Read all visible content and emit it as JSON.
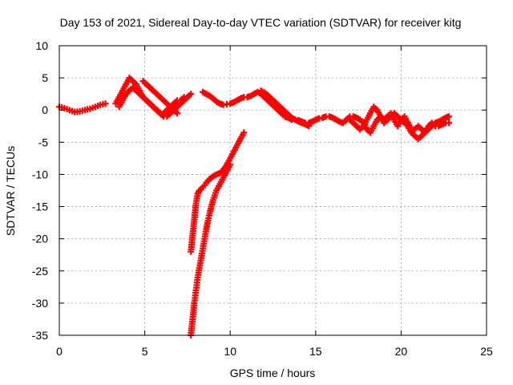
{
  "chart_data": {
    "type": "scatter",
    "title": "Day 153 of 2021, Sidereal Day-to-day VTEC variation (SDTVAR) for receiver kitg",
    "xlabel": "GPS time / hours",
    "ylabel": "SDTVAR / TECUs",
    "xlim": [
      0,
      25
    ],
    "ylim": [
      -35,
      10
    ],
    "xticks": [
      0,
      5,
      10,
      15,
      20,
      25
    ],
    "yticks": [
      10,
      5,
      0,
      -5,
      -10,
      -15,
      -20,
      -25,
      -30,
      -35
    ],
    "grid": true,
    "marker": "plus",
    "color": "#ff0000",
    "series": [
      {
        "name": "main-0",
        "x": [
          0.0,
          0.3,
          0.6,
          0.9,
          1.2,
          1.5,
          1.8,
          2.1,
          2.4,
          2.7
        ],
        "y": [
          0.5,
          0.3,
          0.0,
          -0.3,
          -0.2,
          0.0,
          0.2,
          0.5,
          0.8,
          1.0
        ]
      },
      {
        "name": "main-1",
        "x": [
          3.3,
          3.5,
          3.7,
          3.9,
          4.1,
          4.3,
          4.5,
          4.7,
          4.9,
          5.1,
          5.3,
          5.5,
          5.7,
          5.9,
          6.1,
          6.3,
          6.5,
          6.7,
          6.9,
          7.1,
          7.3,
          7.5,
          7.7
        ],
        "y": [
          1.0,
          2.0,
          3.0,
          4.0,
          5.0,
          4.5,
          4.0,
          3.0,
          2.0,
          1.5,
          1.0,
          0.5,
          0.0,
          -0.5,
          -1.0,
          -1.0,
          -0.5,
          0.0,
          0.5,
          1.0,
          1.5,
          2.0,
          2.5
        ]
      },
      {
        "name": "main-2",
        "x": [
          3.5,
          3.7,
          3.9,
          4.1,
          4.3,
          4.5,
          4.7,
          4.9,
          5.1,
          5.3,
          5.5,
          5.7,
          5.9,
          6.1,
          6.3,
          6.5,
          6.7,
          6.9,
          7.1,
          7.3,
          7.5
        ],
        "y": [
          0.5,
          1.5,
          2.5,
          3.0,
          3.5,
          3.0,
          2.5,
          2.0,
          1.5,
          1.0,
          0.5,
          0.0,
          -0.5,
          -0.5,
          0.0,
          0.5,
          1.0,
          1.5,
          1.5,
          2.0,
          2.0
        ]
      },
      {
        "name": "main-3",
        "x": [
          4.9,
          5.1,
          5.3,
          5.5,
          5.7,
          5.9,
          6.1,
          6.3,
          6.5,
          6.7,
          6.9
        ],
        "y": [
          4.5,
          4.0,
          3.5,
          3.0,
          2.5,
          2.0,
          1.5,
          1.0,
          0.5,
          0.0,
          -0.5
        ]
      },
      {
        "name": "main-4",
        "x": [
          8.4,
          8.6,
          8.8,
          9.0,
          9.2,
          9.4,
          9.6,
          9.8,
          10.0,
          10.2,
          10.4,
          10.6,
          10.8,
          11.0,
          11.2,
          11.4,
          11.6,
          11.8,
          12.0,
          12.2,
          12.4,
          12.6,
          12.8,
          13.0,
          13.2,
          13.4,
          13.6,
          13.8,
          14.0,
          14.2,
          14.4,
          14.6,
          14.8,
          15.0,
          15.2,
          15.4,
          15.6,
          15.8,
          16.0,
          16.2,
          16.4,
          16.6,
          16.8,
          17.0
        ],
        "y": [
          2.8,
          2.5,
          2.2,
          1.8,
          1.3,
          1.0,
          0.8,
          0.9,
          1.0,
          1.2,
          1.5,
          1.8,
          2.0,
          2.0,
          2.2,
          2.5,
          2.8,
          2.5,
          2.0,
          1.5,
          1.0,
          0.5,
          0.0,
          -0.5,
          -1.0,
          -1.2,
          -1.5,
          -1.5,
          -1.6,
          -1.8,
          -2.0,
          -2.0,
          -1.8,
          -1.5,
          -1.3,
          -1.2,
          -1.0,
          -1.0,
          -1.2,
          -1.5,
          -1.8,
          -2.0,
          -1.5,
          -1.0
        ]
      },
      {
        "name": "main-5",
        "x": [
          11.8,
          12.0,
          12.2,
          12.4,
          12.6,
          12.8,
          13.0,
          13.2,
          13.4,
          13.6,
          13.8,
          14.0,
          14.2,
          14.4,
          14.6
        ],
        "y": [
          3.0,
          2.7,
          2.3,
          1.8,
          1.3,
          0.8,
          0.3,
          -0.2,
          -0.7,
          -1.2,
          -1.5,
          -1.8,
          -2.0,
          -2.2,
          -2.5
        ]
      },
      {
        "name": "main-6",
        "x": [
          17.0,
          17.2,
          17.4,
          17.6,
          17.8,
          18.0,
          18.2,
          18.4,
          18.6,
          18.8,
          19.0,
          19.2,
          19.4,
          19.6,
          19.8,
          20.0,
          20.2,
          20.4,
          20.6,
          20.8,
          21.0,
          21.2,
          21.4,
          21.6,
          21.8,
          22.0,
          22.2,
          22.4,
          22.6,
          22.8
        ],
        "y": [
          -1.5,
          -2.0,
          -2.5,
          -3.0,
          -2.5,
          -1.5,
          -0.5,
          0.5,
          0.0,
          -1.0,
          -2.0,
          -1.5,
          -1.0,
          -0.5,
          -1.0,
          -1.5,
          -2.0,
          -2.5,
          -3.5,
          -4.0,
          -4.5,
          -4.0,
          -3.5,
          -3.0,
          -2.5,
          -2.0,
          -1.8,
          -1.5,
          -1.2,
          -1.0
        ]
      },
      {
        "name": "main-7",
        "x": [
          17.2,
          17.4,
          17.6,
          17.8,
          18.0,
          18.2,
          18.4,
          18.6,
          18.8,
          19.0,
          19.2,
          19.4,
          19.6,
          19.8,
          20.0,
          20.2,
          20.4,
          20.6,
          20.8,
          21.0,
          21.2,
          21.4,
          21.6,
          21.8,
          22.0,
          22.2,
          22.4,
          22.6,
          22.8
        ],
        "y": [
          -1.0,
          -1.2,
          -1.5,
          -2.0,
          -3.0,
          -3.5,
          -2.5,
          -1.5,
          -1.0,
          -1.5,
          -1.0,
          -0.5,
          -1.5,
          -2.5,
          -1.5,
          -1.0,
          -2.0,
          -3.0,
          -3.0,
          -2.5,
          -3.0,
          -3.5,
          -2.5,
          -2.0,
          -2.5,
          -2.5,
          -2.2,
          -2.0,
          -2.0
        ]
      },
      {
        "name": "lower-1",
        "x": [
          7.7,
          7.8,
          7.9,
          8.0,
          8.1,
          8.2,
          8.4,
          8.6,
          8.8,
          9.0,
          9.2,
          9.4,
          9.6,
          9.8,
          10.0,
          10.2,
          10.4,
          10.6,
          10.8
        ],
        "y": [
          -22.0,
          -19.5,
          -17.0,
          -14.5,
          -13.0,
          -12.5,
          -12.0,
          -11.3,
          -10.7,
          -10.3,
          -10.0,
          -9.8,
          -9.3,
          -8.5,
          -7.5,
          -6.5,
          -5.5,
          -4.5,
          -3.5
        ]
      },
      {
        "name": "lower-2",
        "x": [
          7.7,
          7.8,
          7.9,
          8.0,
          8.1,
          8.2,
          8.3,
          8.4,
          8.5,
          8.6,
          8.7,
          8.8,
          8.9,
          9.0,
          9.2,
          9.4,
          9.6,
          9.8,
          10.0
        ],
        "y": [
          -35.0,
          -32.5,
          -30.0,
          -28.0,
          -26.0,
          -24.5,
          -23.0,
          -21.5,
          -20.0,
          -18.5,
          -17.2,
          -16.0,
          -15.0,
          -14.0,
          -12.5,
          -11.5,
          -10.5,
          -9.5,
          -8.5
        ]
      }
    ]
  }
}
